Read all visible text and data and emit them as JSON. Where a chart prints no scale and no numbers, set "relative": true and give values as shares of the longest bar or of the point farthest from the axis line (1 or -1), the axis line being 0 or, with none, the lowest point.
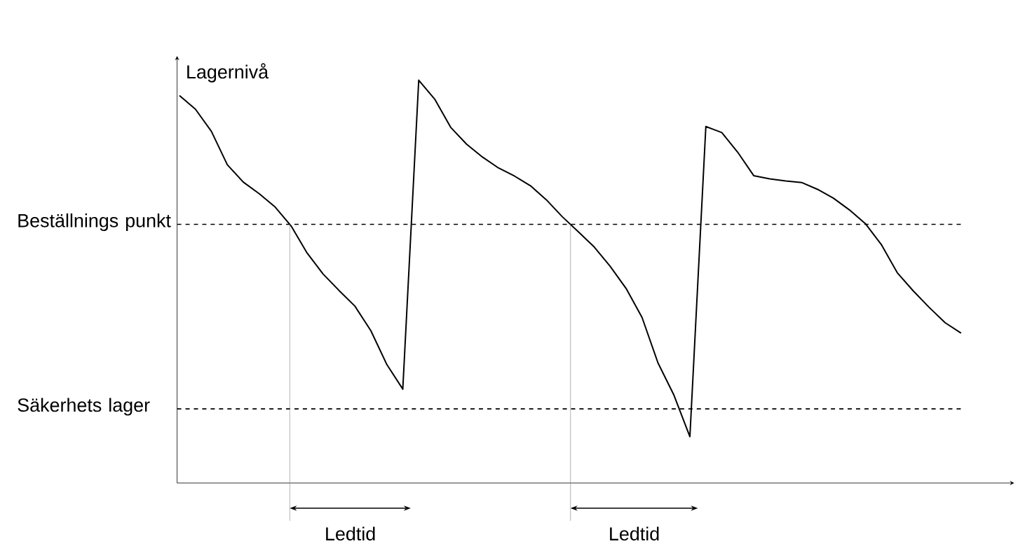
{
  "chart_data": {
    "type": "line",
    "relative": true,
    "ylabel": "Lagernivå",
    "tick_labels": false,
    "line_style": "solid",
    "categories": [
      null,
      null,
      null,
      null,
      null,
      null,
      null,
      null,
      null,
      null,
      null,
      null,
      null,
      null,
      null,
      null,
      null,
      null,
      null,
      null,
      null,
      null,
      null,
      null,
      null,
      null,
      null,
      null,
      null,
      null,
      null,
      null,
      null,
      null,
      null,
      null,
      null,
      null,
      null,
      null,
      null,
      null,
      null,
      null,
      null,
      null,
      null,
      null,
      null,
      null
    ],
    "series": [
      {
        "color": "#000000",
        "values": [
          0.962,
          0.928,
          0.873,
          0.79,
          0.747,
          0.718,
          0.685,
          0.638,
          0.571,
          0.519,
          0.478,
          0.439,
          0.378,
          0.294,
          0.233,
          1.0,
          0.953,
          0.883,
          0.841,
          0.809,
          0.782,
          0.762,
          0.738,
          0.703,
          0.661,
          0.624,
          0.586,
          0.538,
          0.483,
          0.411,
          0.298,
          0.218,
          0.115,
          0.885,
          0.87,
          0.821,
          0.763,
          0.755,
          0.75,
          0.746,
          0.729,
          0.707,
          0.678,
          0.644,
          0.592,
          0.522,
          0.477,
          0.436,
          0.398,
          0.372
        ]
      }
    ],
    "ref_lines": [
      {
        "axis": "y",
        "value": 0.642,
        "label": "Beställnings punkt",
        "line_style": "dashed"
      },
      {
        "axis": "y",
        "value": 0.184,
        "label": "Säkerhets lager",
        "line_style": "dashed"
      }
    ],
    "annotations": [
      "Ledtid",
      "Ledtid"
    ]
  }
}
